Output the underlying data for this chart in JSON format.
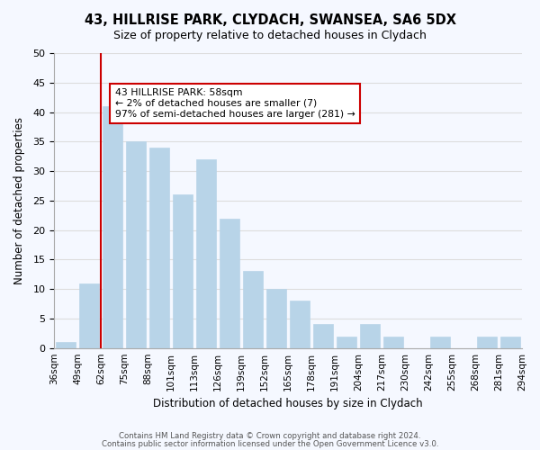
{
  "title": "43, HILLRISE PARK, CLYDACH, SWANSEA, SA6 5DX",
  "subtitle": "Size of property relative to detached houses in Clydach",
  "xlabel": "Distribution of detached houses by size in Clydach",
  "ylabel": "Number of detached properties",
  "footer_lines": [
    "Contains HM Land Registry data © Crown copyright and database right 2024.",
    "Contains public sector information licensed under the Open Government Licence v3.0."
  ],
  "bins": [
    "36sqm",
    "49sqm",
    "62sqm",
    "75sqm",
    "88sqm",
    "101sqm",
    "113sqm",
    "126sqm",
    "139sqm",
    "152sqm",
    "165sqm",
    "178sqm",
    "191sqm",
    "204sqm",
    "217sqm",
    "230sqm",
    "242sqm",
    "255sqm",
    "268sqm",
    "281sqm",
    "294sqm"
  ],
  "values": [
    1,
    11,
    41,
    35,
    34,
    26,
    32,
    22,
    13,
    10,
    8,
    4,
    2,
    4,
    2,
    0,
    2,
    0,
    2,
    2
  ],
  "bar_color": "#b8d4e8",
  "bar_edge_color": "#b8d4e8",
  "grid_color": "#dddddd",
  "ylim": [
    0,
    50
  ],
  "yticks": [
    0,
    5,
    10,
    15,
    20,
    25,
    30,
    35,
    40,
    45,
    50
  ],
  "annotation_title": "43 HILLRISE PARK: 58sqm",
  "annotation_line1": "← 2% of detached houses are smaller (7)",
  "annotation_line2": "97% of semi-detached houses are larger (281) →",
  "annotation_box_color": "#ffffff",
  "annotation_border_color": "#cc0000",
  "red_line_color": "#cc0000",
  "background_color": "#f5f8ff"
}
